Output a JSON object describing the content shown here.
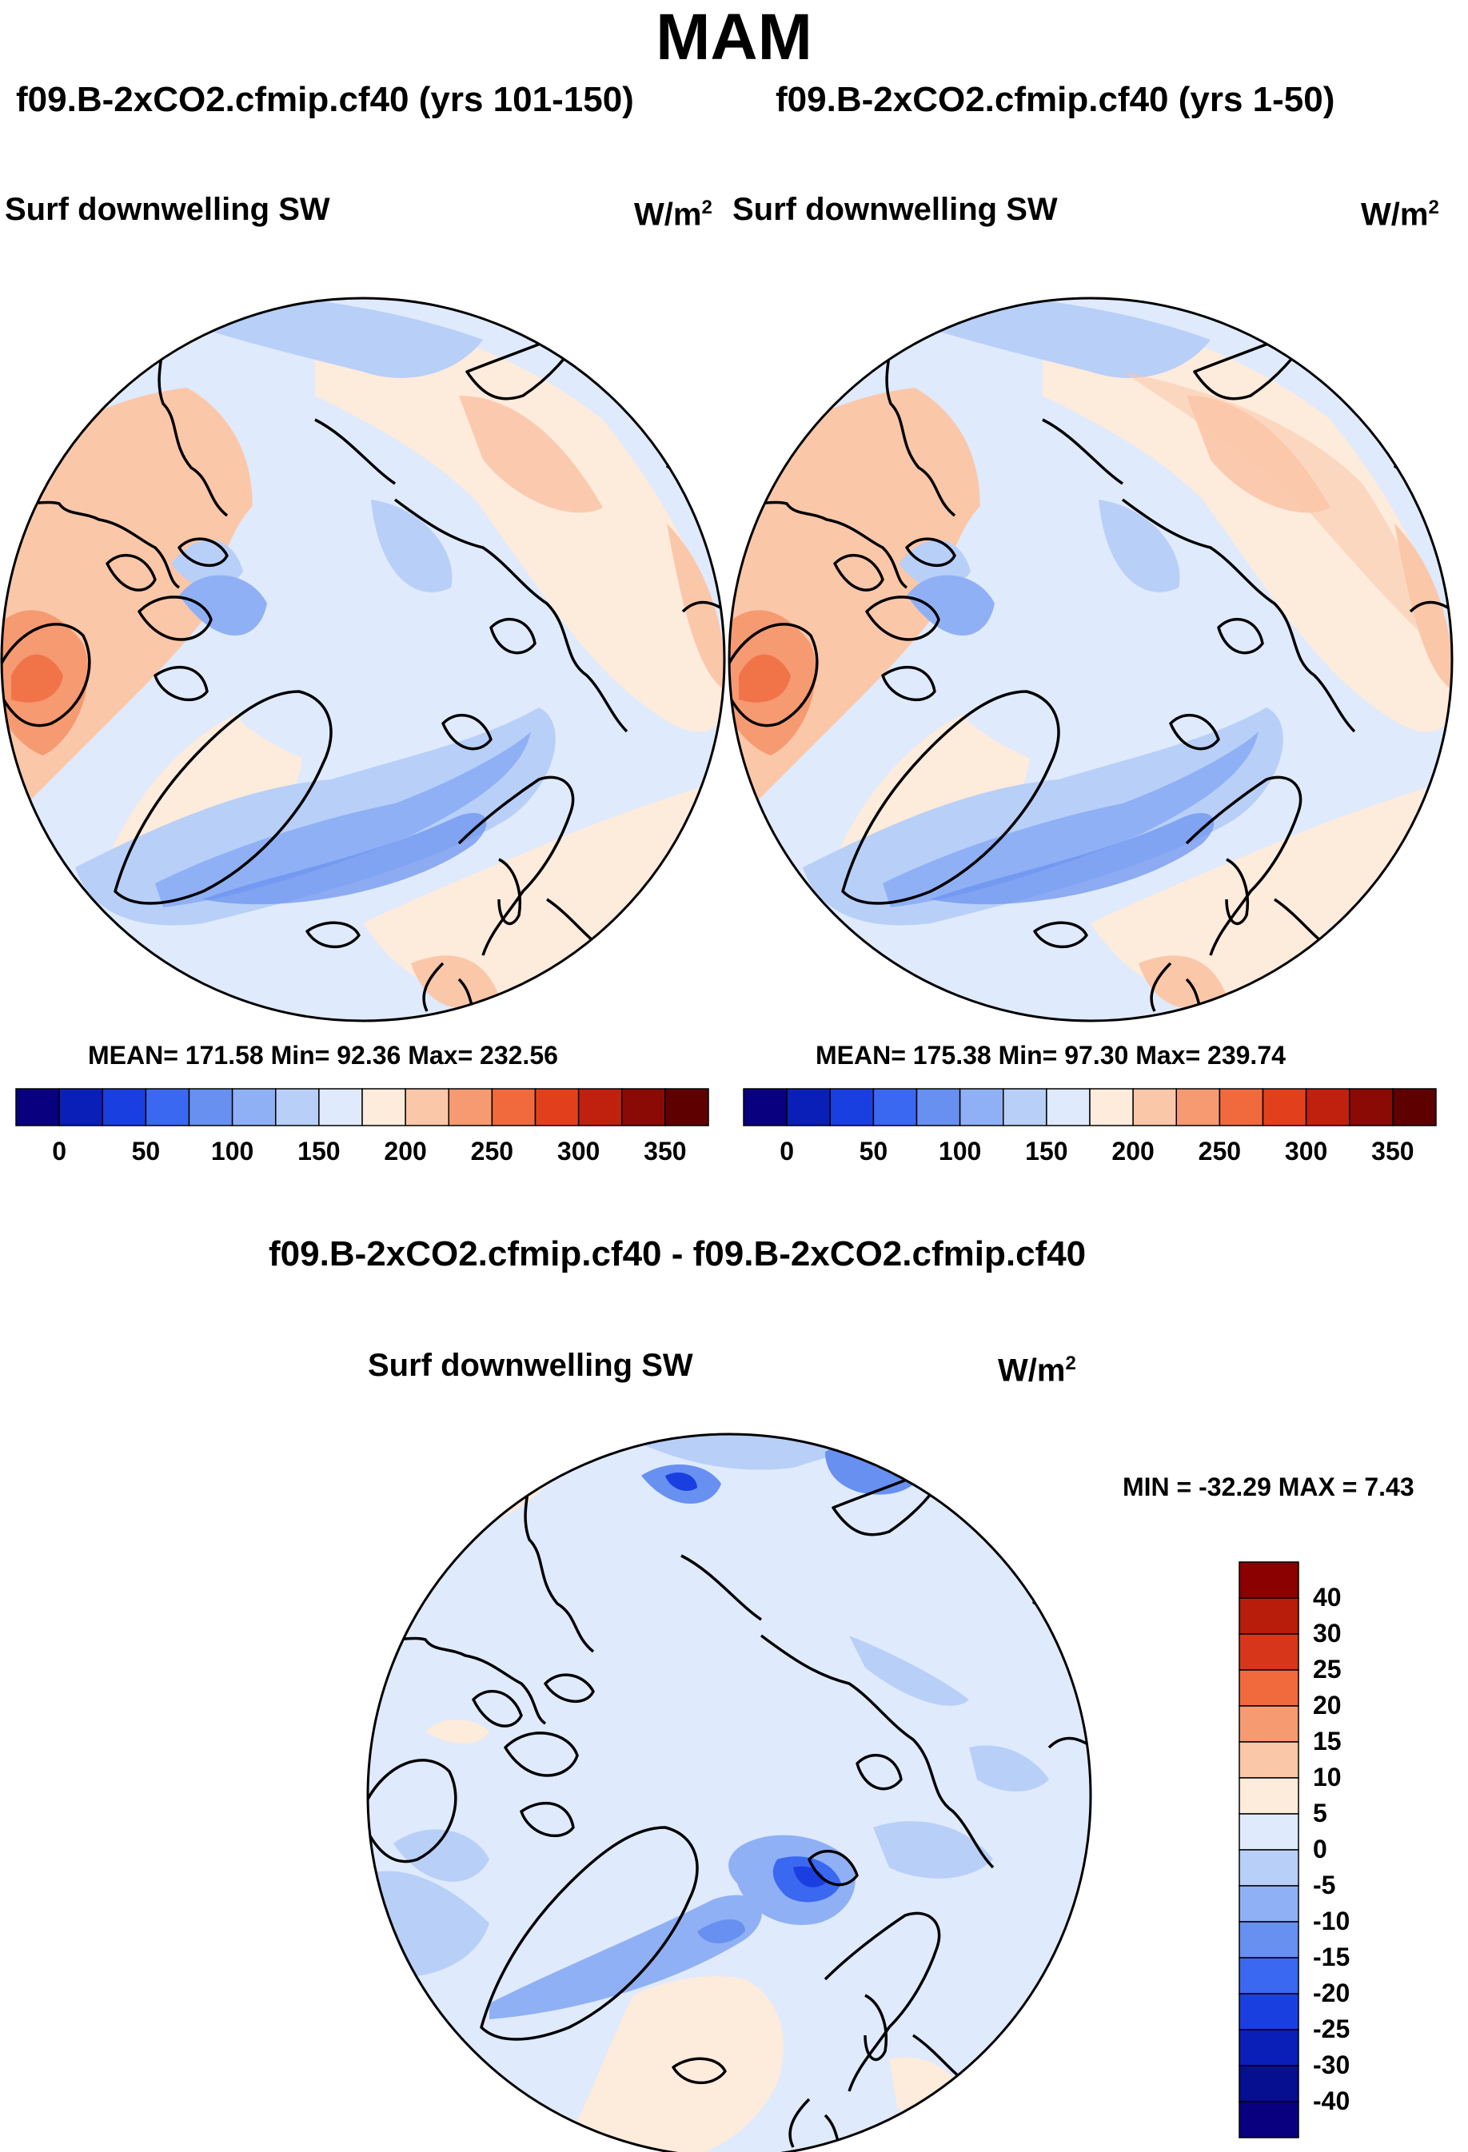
{
  "title": "MAM",
  "panels": [
    {
      "run_title": "f09.B-2xCO2.cfmip.cf40 (yrs 101-150)",
      "variable": "Surf downwelling SW",
      "units_base": "W/m",
      "units_exp": "2",
      "stats": "MEAN= 171.58  Min=  92.36  Max= 232.56"
    },
    {
      "run_title": "f09.B-2xCO2.cfmip.cf40 (yrs 1-50)",
      "variable": "Surf downwelling SW",
      "units_base": "W/m",
      "units_exp": "2",
      "stats": "MEAN= 175.38  Min=  97.30  Max= 239.74"
    }
  ],
  "diff_panel": {
    "run_title": "f09.B-2xCO2.cfmip.cf40 - f09.B-2xCO2.cfmip.cf40",
    "variable": "Surf downwelling SW",
    "units_base": "W/m",
    "units_exp": "2",
    "stats": "MIN = -32.29 MAX =   7.43"
  },
  "chart_data": [
    {
      "type": "heatmap",
      "projection": "north polar stereographic",
      "title": "f09.B-2xCO2.cfmip.cf40 (yrs 101-150)",
      "field": "Surf downwelling SW",
      "units": "W/m2",
      "mean": 171.58,
      "min": 92.36,
      "max": 232.56,
      "colorbar": {
        "orientation": "horizontal",
        "levels": [
          0,
          25,
          50,
          75,
          100,
          125,
          150,
          175,
          200,
          225,
          250,
          275,
          300,
          325,
          350
        ],
        "tick_labels": [
          "0",
          "50",
          "100",
          "150",
          "200",
          "250",
          "300",
          "350"
        ],
        "colors": [
          "#08007f",
          "#0a1fb8",
          "#1a3fe0",
          "#3a68f0",
          "#6890f0",
          "#8fb0f4",
          "#b8cff8",
          "#dfeafc",
          "#fdebdc",
          "#fbc7a9",
          "#f69a72",
          "#f06a3e",
          "#e2401c",
          "#c0200e",
          "#8a0a05",
          "#5e0000"
        ]
      }
    },
    {
      "type": "heatmap",
      "projection": "north polar stereographic",
      "title": "f09.B-2xCO2.cfmip.cf40 (yrs 1-50)",
      "field": "Surf downwelling SW",
      "units": "W/m2",
      "mean": 175.38,
      "min": 97.3,
      "max": 239.74,
      "colorbar": {
        "orientation": "horizontal",
        "levels": [
          0,
          25,
          50,
          75,
          100,
          125,
          150,
          175,
          200,
          225,
          250,
          275,
          300,
          325,
          350
        ],
        "tick_labels": [
          "0",
          "50",
          "100",
          "150",
          "200",
          "250",
          "300",
          "350"
        ],
        "colors": [
          "#08007f",
          "#0a1fb8",
          "#1a3fe0",
          "#3a68f0",
          "#6890f0",
          "#8fb0f4",
          "#b8cff8",
          "#dfeafc",
          "#fdebdc",
          "#fbc7a9",
          "#f69a72",
          "#f06a3e",
          "#e2401c",
          "#c0200e",
          "#8a0a05",
          "#5e0000"
        ]
      }
    },
    {
      "type": "heatmap",
      "projection": "north polar stereographic",
      "title": "f09.B-2xCO2.cfmip.cf40 - f09.B-2xCO2.cfmip.cf40",
      "field": "Surf downwelling SW",
      "units": "W/m2",
      "min": -32.29,
      "max": 7.43,
      "colorbar": {
        "orientation": "vertical",
        "levels": [
          40,
          30,
          25,
          20,
          15,
          10,
          5,
          0,
          -5,
          -10,
          -15,
          -20,
          -25,
          -30,
          -40
        ],
        "tick_labels": [
          "40",
          "30",
          "25",
          "20",
          "15",
          "10",
          "5",
          "0",
          "-5",
          "-10",
          "-15",
          "-20",
          "-25",
          "-30",
          "-40"
        ],
        "colors": [
          "#8b0000",
          "#b81c0a",
          "#d8361a",
          "#f06a3e",
          "#f69a72",
          "#fbc7a9",
          "#fdebdc",
          "#dfeafc",
          "#b8cff8",
          "#8fb0f4",
          "#6890f0",
          "#3a68f0",
          "#1a3fe0",
          "#0a1fb8",
          "#060f90",
          "#08007f"
        ]
      }
    }
  ]
}
